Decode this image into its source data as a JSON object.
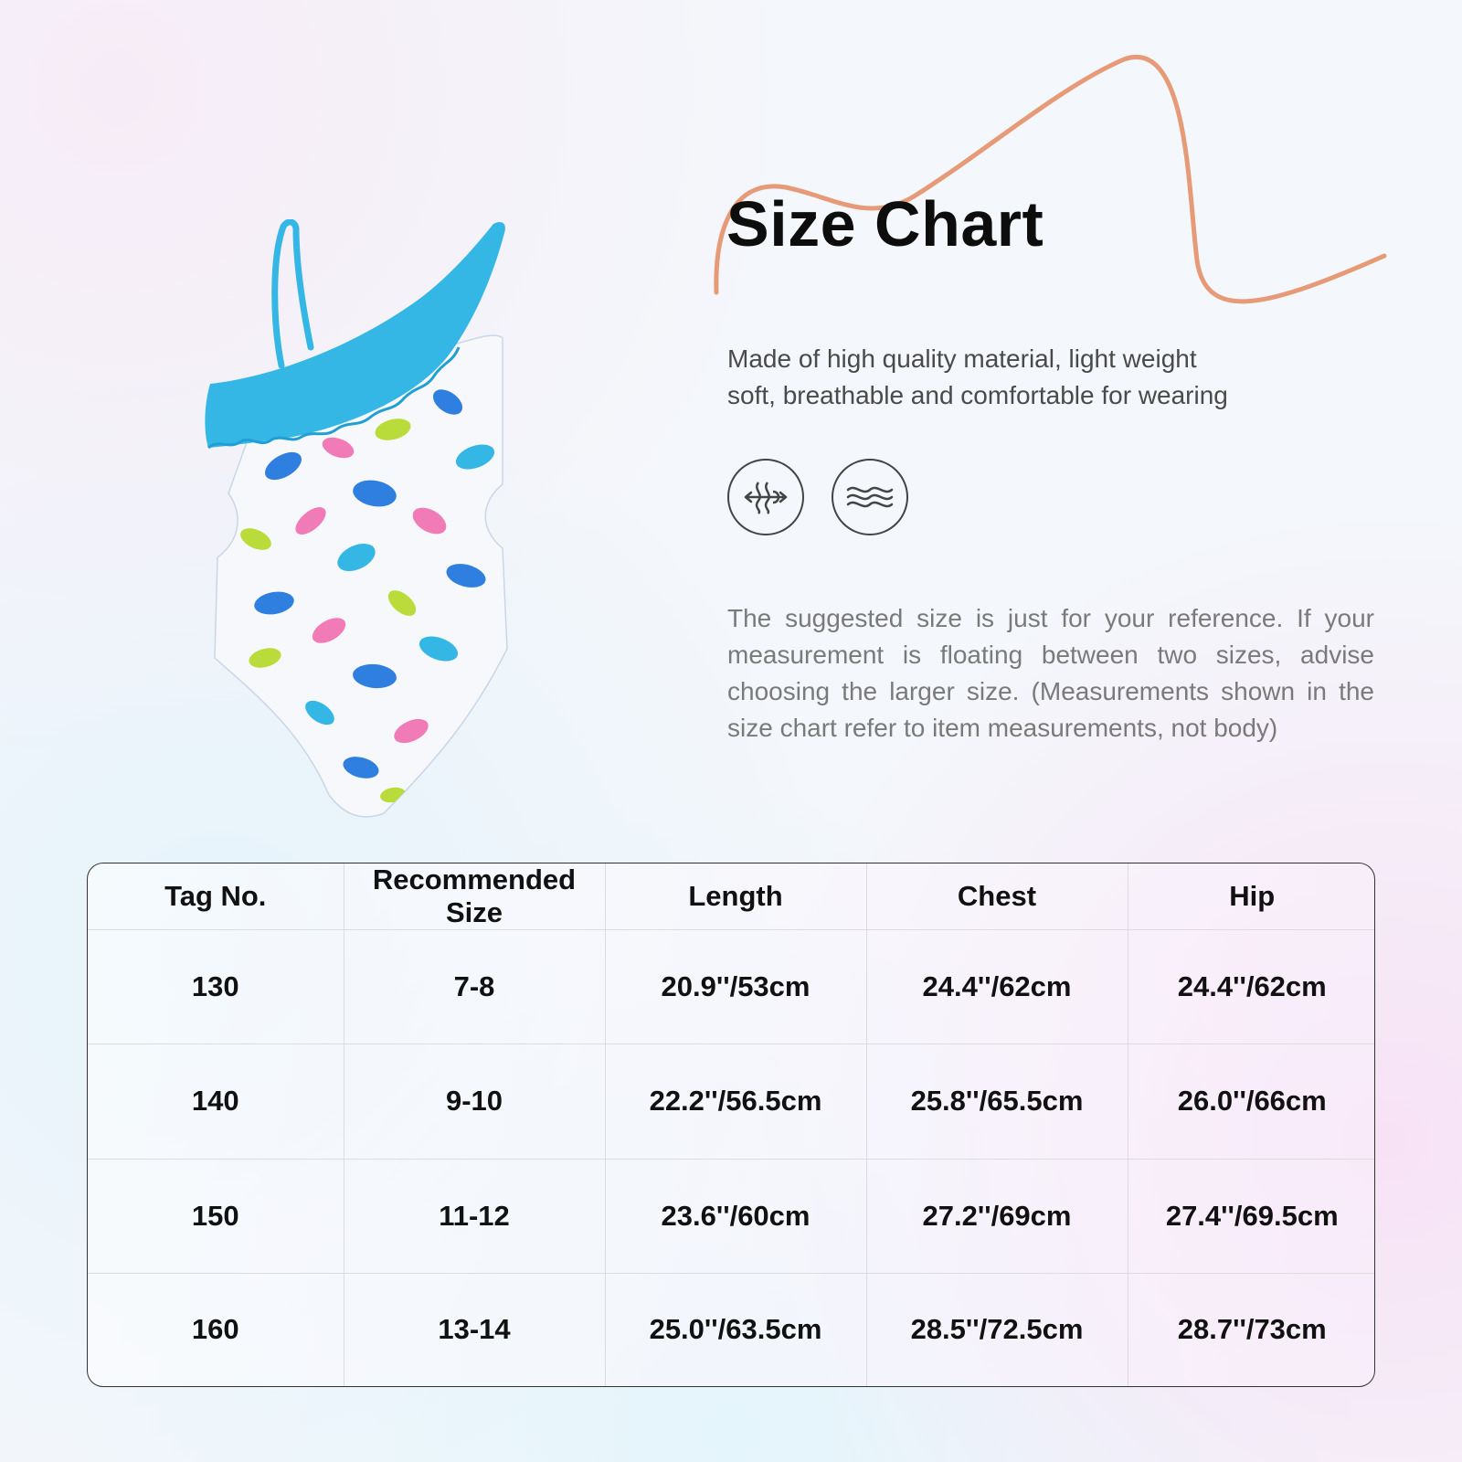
{
  "header": {
    "title": "Size Chart",
    "subtitle_line1": "Made of high quality material, light weight",
    "subtitle_line2": "soft, breathable and comfortable for wearing"
  },
  "features": {
    "icons": [
      "breathable-icon",
      "soft-wave-icon"
    ]
  },
  "note": "The suggested size is just for your reference. If your measurement is floating between two sizes, advise choosing the larger size. (Measurements shown in the size chart refer to item measurements, not body)",
  "size_table": {
    "headers": [
      "Tag No.",
      "Recommended Size",
      "Length",
      "Chest",
      "Hip"
    ],
    "rows": [
      [
        "130",
        "7-8",
        "20.9''/53cm",
        "24.4''/62cm",
        "24.4''/62cm"
      ],
      [
        "140",
        "9-10",
        "22.2''/56.5cm",
        "25.8''/65.5cm",
        "26.0''/66cm"
      ],
      [
        "150",
        "11-12",
        "23.6''/60cm",
        "27.2''/69cm",
        "27.4''/69.5cm"
      ],
      [
        "160",
        "13-14",
        "25.0''/63.5cm",
        "28.5''/72.5cm",
        "28.7''/73cm"
      ]
    ]
  },
  "colors": {
    "accent_swirl": "#e69a77",
    "ruffle": "#35b7e6",
    "leaf_blue": "#2f7fe0",
    "leaf_pink": "#f07bb6",
    "leaf_green": "#b9dc3a"
  }
}
